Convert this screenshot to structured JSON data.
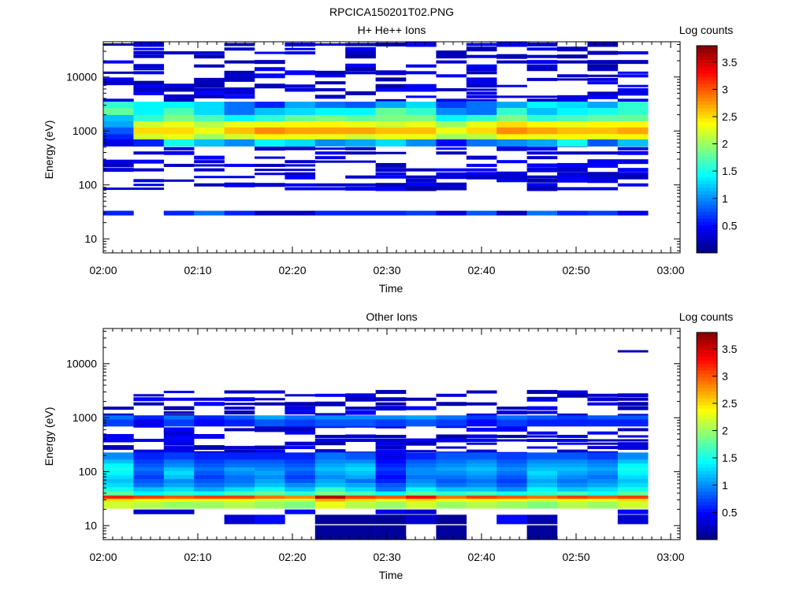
{
  "figure_title": "RPCICA150201T02.PNG",
  "colormap": [
    "#00007f",
    "#0000ff",
    "#007fff",
    "#00ffff",
    "#7fff7f",
    "#ffff00",
    "#ff7f00",
    "#ff0000",
    "#7f0000"
  ],
  "chart_data": [
    {
      "type": "heatmap",
      "title": "H+ He++ Ions",
      "xlabel": "Time",
      "ylabel": "Energy (eV)",
      "colorbar_label": "Log counts",
      "y_scale": "log",
      "ylim": [
        5.5,
        45000
      ],
      "xlim_minutes": [
        0,
        61
      ],
      "x_ticks": [
        "02:00",
        "02:10",
        "02:20",
        "02:30",
        "02:40",
        "02:50",
        "03:00"
      ],
      "y_ticks": [
        "10",
        "100",
        "1000",
        "10000"
      ],
      "clim": [
        0,
        3.8
      ],
      "colorbar_ticks": [
        "0.5",
        "1",
        "1.5",
        "2",
        "2.5",
        "3",
        "3.5"
      ],
      "time_bins_minutes": [
        0,
        3.2,
        6.4,
        9.6,
        12.8,
        16,
        19.2,
        22.4,
        25.6,
        28.8,
        32,
        35.2,
        38.4,
        41.6,
        44.8,
        48,
        51.2,
        54.4,
        57.6
      ],
      "energy_bands_eV": [
        {
          "e": 3000,
          "values": [
            1.6,
            1.4,
            1.4,
            1.3,
            0.9,
            0.6,
            1.1,
            0.9,
            0.8,
            1.1,
            1.3,
            0.7,
            0.9,
            1.1,
            1.4,
            1.3,
            1.1,
            1.6
          ]
        },
        {
          "e": 2300,
          "values": [
            1.8,
            1.4,
            1.7,
            1.3,
            0.9,
            1.2,
            1.3,
            1.4,
            1.4,
            1.8,
            1.6,
            1.0,
            0.9,
            1.6,
            1.2,
            1.4,
            1.5,
            1.6
          ]
        },
        {
          "e": 1700,
          "values": [
            1.2,
            1.6,
            1.9,
            1.7,
            1.4,
            1.6,
            1.8,
            1.9,
            1.8,
            1.9,
            1.9,
            1.4,
            1.6,
            1.9,
            1.6,
            1.7,
            1.8,
            1.8
          ]
        },
        {
          "e": 1300,
          "values": [
            1.1,
            2.2,
            2.3,
            2.1,
            2.3,
            2.3,
            2.4,
            2.4,
            2.3,
            2.2,
            2.3,
            2.0,
            2.3,
            2.5,
            2.4,
            2.3,
            2.4,
            2.4
          ]
        },
        {
          "e": 1000,
          "values": [
            0.8,
            2.5,
            2.5,
            2.3,
            2.6,
            2.8,
            2.7,
            2.7,
            2.7,
            2.6,
            2.6,
            2.3,
            2.5,
            2.8,
            2.7,
            2.6,
            2.6,
            2.7
          ]
        },
        {
          "e": 750,
          "values": [
            0.6,
            2.2,
            2.3,
            2.0,
            2.2,
            2.4,
            2.3,
            2.3,
            2.2,
            2.3,
            2.3,
            2.0,
            2.1,
            2.4,
            2.3,
            2.4,
            2.3,
            2.4
          ]
        },
        {
          "e": 600,
          "values": [
            0.4,
            0.6,
            1.5,
            1.2,
            1.0,
            1.4,
            1.3,
            1.0,
            1.1,
            1.3,
            1.0,
            0.5,
            0.9,
            1.0,
            1.1,
            1.5,
            0.8,
            1.2
          ]
        }
      ],
      "noise_bands_eV": [
        40000,
        33000,
        28000,
        24000,
        19000,
        16000,
        14000,
        12000,
        10500,
        9000,
        7800,
        6800,
        5800,
        5000,
        4300,
        3700,
        550,
        470,
        390,
        320,
        270,
        230,
        190,
        160,
        140,
        120,
        100,
        85
      ],
      "low_energy_band_eV": {
        "e": 30,
        "values": [
          0.6,
          0,
          0.6,
          0.9,
          0.6,
          0.2,
          0.2,
          0.6,
          0.6,
          0.6,
          0.7,
          0.3,
          0.8,
          0.2,
          0.9,
          0.6,
          0.7,
          0.4
        ]
      }
    },
    {
      "type": "heatmap",
      "title": "Other Ions",
      "xlabel": "Time",
      "ylabel": "Energy (eV)",
      "colorbar_label": "Log counts",
      "y_scale": "log",
      "ylim": [
        5.5,
        45000
      ],
      "xlim_minutes": [
        0,
        61
      ],
      "x_ticks": [
        "02:00",
        "02:10",
        "02:20",
        "02:30",
        "02:40",
        "02:50",
        "03:00"
      ],
      "y_ticks": [
        "10",
        "100",
        "1000",
        "10000"
      ],
      "clim": [
        0,
        3.8
      ],
      "colorbar_ticks": [
        "0.5",
        "1",
        "1.5",
        "2",
        "2.5",
        "3",
        "3.5"
      ],
      "time_bins_minutes": [
        0,
        3.2,
        6.4,
        9.6,
        12.8,
        16,
        19.2,
        22.4,
        25.6,
        28.8,
        32,
        35.2,
        38.4,
        41.6,
        44.8,
        48,
        51.2,
        54.4,
        57.6
      ],
      "energy_bands_eV": [
        {
          "e": 35,
          "values": [
            3.0,
            3.0,
            2.9,
            2.9,
            3.0,
            2.8,
            2.8,
            3.5,
            3.0,
            2.9,
            3.2,
            2.8,
            3.0,
            2.9,
            2.8,
            3.0,
            2.9,
            3.0
          ]
        },
        {
          "e": 31,
          "values": [
            3.2,
            3.1,
            3.0,
            3.1,
            3.1,
            2.9,
            2.8,
            3.6,
            3.1,
            3.0,
            3.3,
            2.9,
            3.1,
            3.0,
            2.9,
            3.1,
            3.0,
            3.1
          ]
        },
        {
          "e": 27,
          "values": [
            2.5,
            2.4,
            2.4,
            2.3,
            2.4,
            2.2,
            2.2,
            2.7,
            2.5,
            2.3,
            2.5,
            2.3,
            2.4,
            2.3,
            2.2,
            2.4,
            2.3,
            2.5
          ]
        },
        {
          "e": 24,
          "values": [
            2.2,
            2.1,
            2.0,
            2.0,
            2.1,
            2.0,
            1.9,
            2.3,
            2.1,
            2.0,
            2.2,
            2.0,
            2.1,
            2.0,
            1.9,
            2.1,
            2.0,
            2.2
          ]
        },
        {
          "e": 42,
          "values": [
            1.8,
            1.4,
            1.6,
            1.5,
            1.7,
            1.8,
            1.6,
            1.9,
            1.7,
            1.4,
            1.8,
            1.6,
            1.7,
            1.5,
            1.6,
            1.7,
            1.5,
            1.8
          ]
        },
        {
          "e": 50,
          "values": [
            1.5,
            1.2,
            1.3,
            1.1,
            1.3,
            1.5,
            1.2,
            1.6,
            1.3,
            0.9,
            1.4,
            1.2,
            1.2,
            1.0,
            1.4,
            1.2,
            1.3,
            1.5
          ]
        },
        {
          "e": 60,
          "values": [
            1.3,
            0.9,
            1.1,
            0.9,
            1.0,
            1.2,
            1.0,
            1.2,
            1.1,
            0.8,
            1.1,
            0.9,
            1.0,
            0.8,
            1.2,
            1.0,
            1.1,
            1.3
          ]
        },
        {
          "e": 72,
          "values": [
            1.2,
            0.8,
            1.0,
            0.8,
            0.9,
            1.1,
            0.8,
            1.1,
            0.9,
            0.6,
            1.0,
            0.8,
            0.9,
            0.7,
            1.1,
            0.9,
            1.0,
            1.2
          ]
        },
        {
          "e": 85,
          "values": [
            1.3,
            0.7,
            1.2,
            0.7,
            0.9,
            1.0,
            0.7,
            1.0,
            1.1,
            0.5,
            0.9,
            0.9,
            1.0,
            0.8,
            1.2,
            1.0,
            0.9,
            1.3
          ]
        },
        {
          "e": 100,
          "values": [
            1.4,
            0.8,
            1.3,
            0.8,
            1.0,
            1.1,
            0.8,
            1.1,
            1.2,
            0.6,
            1.0,
            1.0,
            1.1,
            0.9,
            1.3,
            1.1,
            1.0,
            1.4
          ]
        },
        {
          "e": 120,
          "values": [
            1.5,
            0.9,
            1.2,
            0.9,
            1.1,
            1.0,
            0.9,
            1.2,
            1.3,
            0.7,
            1.0,
            1.1,
            1.2,
            1.0,
            1.2,
            1.2,
            1.1,
            1.5
          ]
        },
        {
          "e": 140,
          "values": [
            1.4,
            0.8,
            1.0,
            0.8,
            0.9,
            0.9,
            0.8,
            1.1,
            1.2,
            0.6,
            0.9,
            1.0,
            1.1,
            0.9,
            1.1,
            1.1,
            1.0,
            1.4
          ]
        },
        {
          "e": 165,
          "values": [
            1.2,
            0.7,
            0.9,
            0.7,
            0.8,
            0.8,
            0.7,
            1.0,
            1.0,
            0.5,
            0.8,
            0.9,
            1.0,
            0.8,
            1.0,
            1.0,
            0.9,
            1.2
          ]
        },
        {
          "e": 195,
          "values": [
            1.0,
            0.6,
            0.7,
            0.6,
            0.6,
            0.6,
            0.6,
            0.9,
            0.8,
            0.4,
            0.6,
            0.8,
            0.8,
            0.7,
            0.8,
            0.8,
            0.7,
            1.0
          ]
        },
        {
          "e": 950,
          "values": [
            0.9,
            0.6,
            0.9,
            0.6,
            0.8,
            1.1,
            0.9,
            1.0,
            1.0,
            1.0,
            1.1,
            0.9,
            0.7,
            0.9,
            0.8,
            0.7,
            0.8,
            0.8
          ]
        },
        {
          "e": 800,
          "values": [
            0.7,
            0.4,
            0.7,
            0.5,
            0.6,
            0.8,
            0.7,
            0.8,
            0.8,
            0.7,
            0.8,
            0.7,
            0.5,
            0.7,
            0.6,
            0.6,
            0.6,
            0.6
          ]
        }
      ],
      "noise_bands_eV": [
        3000,
        2600,
        2200,
        1800,
        1500,
        1250,
        1100,
        700,
        600,
        520,
        450,
        380,
        330,
        280,
        240,
        220
      ],
      "noise_cols_start": [
        0,
        1,
        1,
        1,
        1,
        1,
        1,
        1,
        1,
        1,
        1,
        1,
        1,
        1,
        1,
        1,
        1,
        1
      ],
      "low_energy_band_eV": {
        "e": 18,
        "values": [
          0,
          0.3,
          0.3,
          0,
          0,
          0,
          0.5,
          0,
          0,
          0.4,
          0.3,
          0,
          0,
          0,
          0,
          0,
          0,
          0.5
        ]
      },
      "lowest_band_eV": {
        "e": 13,
        "values": [
          0,
          0,
          0,
          0,
          0.3,
          0.5,
          0,
          0.1,
          0.1,
          0.1,
          0.3,
          0.1,
          0,
          0.5,
          0.2,
          0,
          0,
          0.3
        ]
      },
      "floor_band_eV": {
        "e": 7.5,
        "values": [
          0,
          0,
          0,
          0,
          0,
          0,
          0,
          0.1,
          0.1,
          0.1,
          0,
          0.1,
          0,
          0,
          0.1,
          0,
          0,
          0
        ]
      },
      "isolated_points": [
        {
          "minute": 54.4,
          "e": 17000,
          "value": 0.2
        }
      ]
    }
  ]
}
